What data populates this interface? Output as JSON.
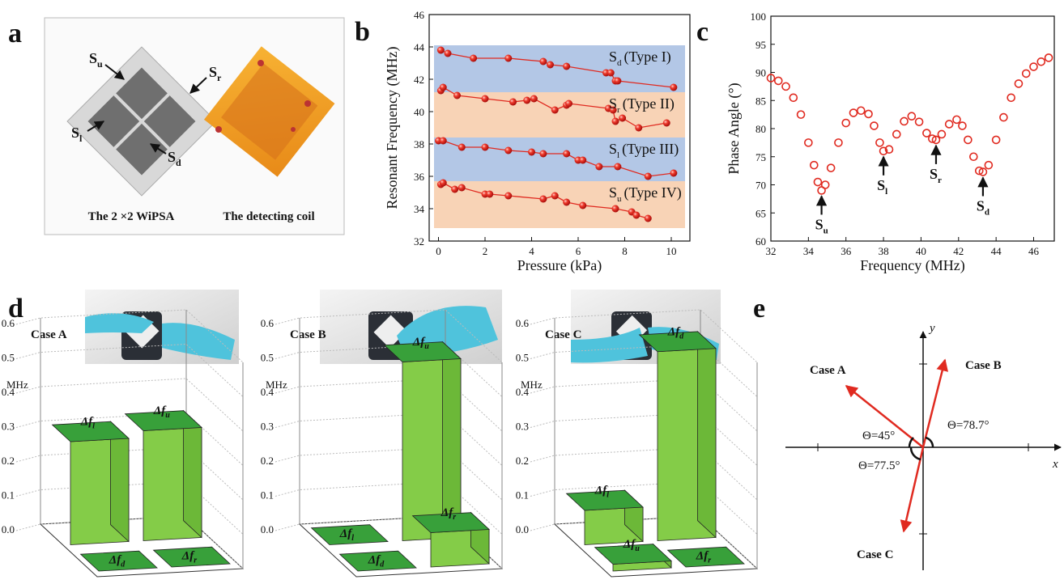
{
  "panel_a": {
    "label": "a",
    "sensors": [
      {
        "symbol": "S",
        "sub": "u"
      },
      {
        "symbol": "S",
        "sub": "r"
      },
      {
        "symbol": "S",
        "sub": "l"
      },
      {
        "symbol": "S",
        "sub": "d"
      }
    ],
    "captions": [
      "The 2 ×2 WiPSA",
      "The detecting coil"
    ]
  },
  "chart_data": [
    {
      "panel": "b",
      "type": "line",
      "x_label": "Pressure (kPa)",
      "y_label": "Resonant Frequency (MHz)",
      "xlim": [
        -0.4,
        10.8
      ],
      "ylim": [
        32,
        46
      ],
      "xticks": [
        0,
        2,
        4,
        6,
        8,
        10
      ],
      "yticks": [
        32,
        34,
        36,
        38,
        40,
        42,
        44,
        46
      ],
      "series": [
        {
          "name": "(Type I)",
          "symbol": "S",
          "subscript": "d",
          "color": "#e02a20",
          "connect": true,
          "band": [
            41.2,
            44.1
          ],
          "band_color": "#b3c7e6",
          "x": [
            0.1,
            0.4,
            1.5,
            3.0,
            4.5,
            4.8,
            5.5,
            7.2,
            7.4,
            7.6,
            7.7,
            10.1
          ],
          "values": [
            43.8,
            43.6,
            43.3,
            43.3,
            43.1,
            42.9,
            42.8,
            42.4,
            42.4,
            41.9,
            41.9,
            41.5
          ]
        },
        {
          "name": "(Type II)",
          "symbol": "S",
          "subscript": "r",
          "color": "#e02a20",
          "connect": true,
          "band": [
            38.4,
            41.2
          ],
          "band_color": "#f8d3b6",
          "x": [
            0.1,
            0.2,
            0.8,
            2.0,
            3.2,
            3.8,
            4.1,
            5.0,
            5.5,
            5.6,
            7.3,
            7.5,
            7.6,
            7.9,
            8.6,
            9.8
          ],
          "values": [
            41.3,
            41.5,
            41.0,
            40.8,
            40.6,
            40.7,
            40.8,
            40.1,
            40.4,
            40.5,
            40.2,
            40.1,
            39.4,
            39.6,
            39.0,
            39.3
          ]
        },
        {
          "name": "(Type III)",
          "symbol": "S",
          "subscript": "l",
          "color": "#e02a20",
          "connect": true,
          "band": [
            35.7,
            38.4
          ],
          "band_color": "#b3c7e6",
          "x": [
            0.0,
            0.2,
            1.0,
            2.0,
            3.0,
            4.0,
            4.5,
            5.5,
            6.0,
            6.2,
            6.9,
            7.7,
            9.0,
            10.1
          ],
          "values": [
            38.2,
            38.2,
            37.8,
            37.8,
            37.6,
            37.5,
            37.4,
            37.4,
            37.0,
            37.0,
            36.6,
            36.6,
            36.0,
            36.2
          ]
        },
        {
          "name": "(Type IV)",
          "symbol": "S",
          "subscript": "u",
          "color": "#e02a20",
          "connect": true,
          "band": [
            32.8,
            35.7
          ],
          "band_color": "#f8d3b6",
          "x": [
            0.1,
            0.2,
            0.7,
            1.0,
            2.0,
            2.2,
            3.0,
            4.5,
            5.0,
            5.5,
            6.2,
            7.6,
            8.3,
            8.5,
            9.0
          ],
          "values": [
            35.5,
            35.6,
            35.2,
            35.3,
            34.9,
            34.9,
            34.8,
            34.6,
            34.8,
            34.4,
            34.2,
            34.0,
            33.8,
            33.6,
            33.4
          ]
        }
      ]
    },
    {
      "panel": "c",
      "type": "line",
      "x_label": "Frequency (MHz)",
      "y_label": "Phase Angle (°)",
      "xlim": [
        32,
        47.1
      ],
      "ylim": [
        60,
        100
      ],
      "xticks": [
        32,
        34,
        36,
        38,
        40,
        42,
        44,
        46
      ],
      "yticks": [
        60,
        65,
        70,
        75,
        80,
        85,
        90,
        95,
        100
      ],
      "series": [
        {
          "color": "#e02a20",
          "connect": false,
          "x": [
            32,
            32.4,
            32.8,
            33.2,
            33.6,
            34,
            34.3,
            34.5,
            34.7,
            34.9,
            35.2,
            35.6,
            36,
            36.4,
            36.8,
            37.2,
            37.5,
            37.8,
            38,
            38.3,
            38.7,
            39.1,
            39.5,
            39.9,
            40.3,
            40.6,
            40.8,
            41.1,
            41.5,
            41.9,
            42.2,
            42.5,
            42.8,
            43.1,
            43.3,
            43.6,
            44,
            44.4,
            44.8,
            45.2,
            45.6,
            46,
            46.4,
            46.8
          ],
          "values": [
            89,
            88.5,
            87.5,
            85.5,
            82.5,
            77.5,
            73.5,
            70.5,
            69,
            70,
            73,
            77.5,
            81,
            82.8,
            83.2,
            82.6,
            80.5,
            77.5,
            76,
            76.3,
            79,
            81.3,
            82.2,
            81.2,
            79.2,
            78.2,
            78,
            79,
            80.8,
            81.6,
            80.5,
            78,
            75,
            72.5,
            72.3,
            73.5,
            78,
            82,
            85.5,
            88,
            89.8,
            91,
            91.9,
            92.6
          ]
        }
      ],
      "annotations": [
        {
          "symbol": "S",
          "subscript": "u"
        },
        {
          "symbol": "S",
          "subscript": "l"
        },
        {
          "symbol": "S",
          "subscript": "r"
        },
        {
          "symbol": "S",
          "subscript": "d"
        }
      ]
    },
    {
      "panel": "d",
      "type": "bar3d",
      "title": "Case A",
      "y_label": "MHz",
      "category_symbol": "Δf",
      "categories": [
        "l",
        "u",
        "d",
        "r"
      ],
      "values": [
        0.3,
        0.32,
        0,
        0
      ],
      "color": "#84cc48",
      "ylim": [
        0,
        0.6
      ],
      "yticks": [
        {
          "value": 0,
          "label": "0.0"
        },
        0.1,
        0.2,
        0.3,
        0.4,
        0.5,
        0.6
      ]
    },
    {
      "type": "bar3d",
      "title": "Case B",
      "y_label": "MHz",
      "category_symbol": "Δf",
      "categories": [
        "l",
        "u",
        "d",
        "r"
      ],
      "values": [
        0,
        0.52,
        0,
        0.1
      ],
      "color": "#84cc48",
      "ylim": [
        0,
        0.6
      ],
      "yticks": [
        {
          "value": 0,
          "label": "0.0"
        },
        0.1,
        0.2,
        0.3,
        0.4,
        0.5,
        0.6
      ]
    },
    {
      "type": "bar3d",
      "title": "Case C",
      "y_label": "MHz",
      "category_symbol": "Δf",
      "categories": [
        "l",
        "d",
        "u",
        "r"
      ],
      "values": [
        0.1,
        0.55,
        0.02,
        0
      ],
      "color": "#84cc48",
      "ylim": [
        0,
        0.6
      ],
      "yticks": [
        {
          "value": 0,
          "label": "0.0"
        },
        0.1,
        0.2,
        0.3,
        0.4,
        0.5,
        0.6
      ]
    }
  ],
  "panel_e": {
    "label": "e",
    "axes": [
      "x",
      "y"
    ],
    "cases": [
      {
        "label": "Case A",
        "angle": "Θ=45°"
      },
      {
        "label": "Case B",
        "angle": "Θ=78.7°"
      },
      {
        "label": "Case C",
        "angle": "Θ=77.5°"
      }
    ]
  }
}
